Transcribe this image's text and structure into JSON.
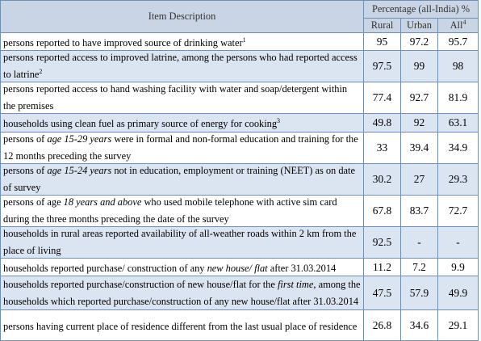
{
  "header": {
    "item_description": "Item Description",
    "percentage": "Percentage (all-India) %",
    "rural": "Rural",
    "urban": "Urban",
    "all": "All",
    "all_sup": "4"
  },
  "rows": [
    {
      "pre": "persons reported to have improved source of drinking water",
      "ital": "",
      "post": "",
      "sup": "1",
      "rural": "95",
      "urban": "97.2",
      "all": "95.7"
    },
    {
      "pre": "persons reported access to improved latrine, among the persons who had reported access to latrine",
      "ital": "",
      "post": "",
      "sup": "2",
      "rural": "97.5",
      "urban": "99",
      "all": "98"
    },
    {
      "pre": "persons reported access to hand washing facility with water and soap/detergent within the premises",
      "ital": "",
      "post": "",
      "sup": "",
      "rural": "77.4",
      "urban": "92.7",
      "all": "81.9"
    },
    {
      "pre": "households using clean fuel as primary source of energy for cooking",
      "ital": "",
      "post": "",
      "sup": "3",
      "rural": "49.8",
      "urban": "92",
      "all": "63.1"
    },
    {
      "pre": "persons of ",
      "ital": "age 15-29 years",
      "post": " were in formal and non-formal education and training for the 12 months preceding the survey",
      "sup": "",
      "rural": "33",
      "urban": "39.4",
      "all": "34.9"
    },
    {
      "pre": "persons of ",
      "ital": "age 15-24 years",
      "post": " not in education, employment or training (NEET) as on date of survey",
      "sup": "",
      "rural": "30.2",
      "urban": "27",
      "all": "29.3"
    },
    {
      "pre": "persons of age ",
      "ital": "18 years and above",
      "post": " who used mobile telephone with active sim card during the three months preceding the date of the survey",
      "sup": "",
      "rural": "67.8",
      "urban": "83.7",
      "all": "72.7"
    },
    {
      "pre": "households in rural areas reported availability of all-weather roads within 2 km from the place of living",
      "ital": "",
      "post": "",
      "sup": "",
      "rural": "92.5",
      "urban": "-",
      "all": "-"
    },
    {
      "pre": "households reported purchase/ construction of any ",
      "ital": "new house/ flat",
      "post": " after 31.03.2014",
      "sup": "",
      "rural": "11.2",
      "urban": "7.2",
      "all": "9.9"
    },
    {
      "pre": "households reported purchase/construction of new house/flat for the ",
      "ital": "first time",
      "post": ", among the households which reported purchase/construction of any new house/flat after 31.03.2014",
      "sup": "",
      "rural": "47.5",
      "urban": "57.9",
      "all": "49.9"
    },
    {
      "pre": "persons having current place of residence different from the last usual place of residence",
      "ital": "",
      "post": "",
      "sup": "",
      "rural": "26.8",
      "urban": "34.6",
      "all": "29.1"
    }
  ]
}
